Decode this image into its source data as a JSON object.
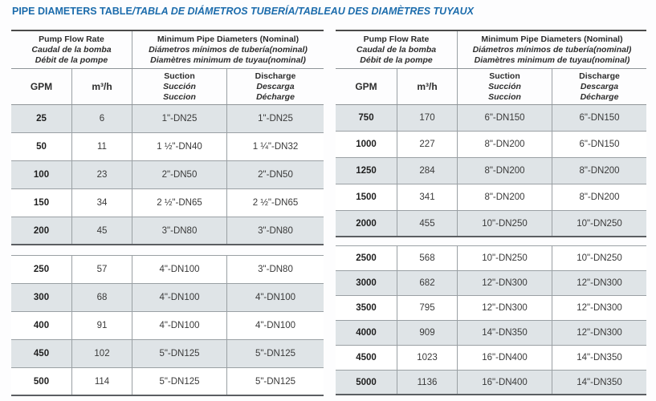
{
  "title": {
    "main": "PIPE DIAMETERS TABLE",
    "translations": "/TABLA DE DIÁMETROS TUBERÍA/TABLEAU DES DIAMÈTRES TUYAUX"
  },
  "colors": {
    "title_blue": "#1c6cac",
    "row_shade": "#dfe4e7",
    "border_gray": "#9aa0a4",
    "border_dark": "#4a4a4a",
    "text_dark": "#2d2d2d"
  },
  "table_header": {
    "flow_rate_lines": [
      "Pump Flow Rate",
      "Caudal de la bomba",
      "Débit de la pompe"
    ],
    "diameter_lines": [
      "Minimum Pipe Diameters (Nominal)",
      "Diámetros mínimos de tubería(nominal)",
      "Diamètres minimum de tuyau(nominal)"
    ],
    "col_gpm": "GPM",
    "col_m3h": "m³/h",
    "suction_lines": [
      "Suction",
      "Succión",
      "Succion"
    ],
    "discharge_lines": [
      "Discharge",
      "Descarga",
      "Décharge"
    ]
  },
  "left_table": {
    "section1": [
      [
        "25",
        "6",
        "1\"-DN25",
        "1\"-DN25"
      ],
      [
        "50",
        "11",
        "1 ½\"-DN40",
        "1 ¼\"-DN32"
      ],
      [
        "100",
        "23",
        "2\"-DN50",
        "2\"-DN50"
      ],
      [
        "150",
        "34",
        "2 ½\"-DN65",
        "2 ½\"-DN65"
      ],
      [
        "200",
        "45",
        "3\"-DN80",
        "3\"-DN80"
      ]
    ],
    "section2": [
      [
        "250",
        "57",
        "4\"-DN100",
        "3\"-DN80"
      ],
      [
        "300",
        "68",
        "4\"-DN100",
        "4\"-DN100"
      ],
      [
        "400",
        "91",
        "4\"-DN100",
        "4\"-DN100"
      ],
      [
        "450",
        "102",
        "5\"-DN125",
        "5\"-DN125"
      ],
      [
        "500",
        "114",
        "5\"-DN125",
        "5\"-DN125"
      ]
    ]
  },
  "right_table": {
    "section1": [
      [
        "750",
        "170",
        "6\"-DN150",
        "6\"-DN150"
      ],
      [
        "1000",
        "227",
        "8\"-DN200",
        "6\"-DN150"
      ],
      [
        "1250",
        "284",
        "8\"-DN200",
        "8\"-DN200"
      ],
      [
        "1500",
        "341",
        "8\"-DN200",
        "8\"-DN200"
      ],
      [
        "2000",
        "455",
        "10\"-DN250",
        "10\"-DN250"
      ]
    ],
    "section2": [
      [
        "2500",
        "568",
        "10\"-DN250",
        "10\"-DN250"
      ],
      [
        "3000",
        "682",
        "12\"-DN300",
        "12\"-DN300"
      ],
      [
        "3500",
        "795",
        "12\"-DN300",
        "12\"-DN300"
      ],
      [
        "4000",
        "909",
        "14\"-DN350",
        "12\"-DN300"
      ],
      [
        "4500",
        "1023",
        "16\"-DN400",
        "14\"-DN350"
      ],
      [
        "5000",
        "1136",
        "16\"-DN400",
        "14\"-DN350"
      ]
    ]
  }
}
